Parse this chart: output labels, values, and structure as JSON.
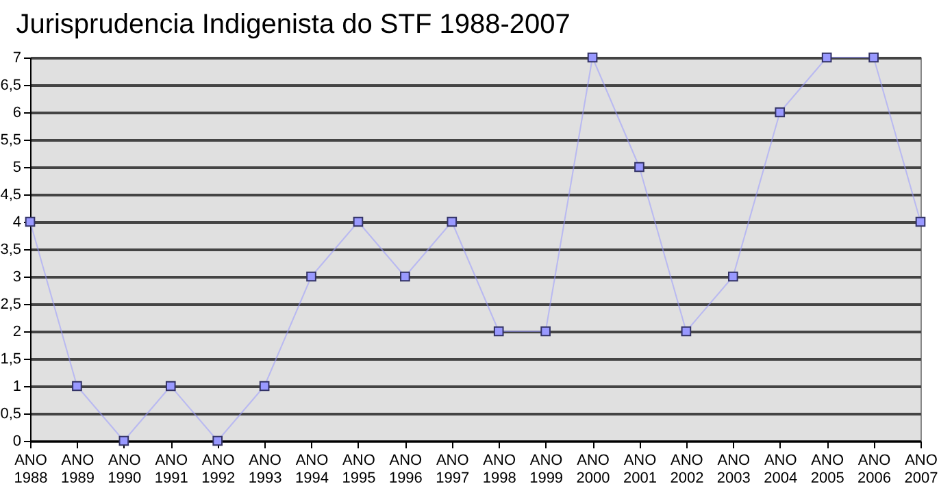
{
  "chart_data": {
    "type": "line",
    "title": "Jurisprudencia Indigenista do STF 1988-2007",
    "categories": [
      "ANO 1988",
      "ANO 1989",
      "ANO 1990",
      "ANO 1991",
      "ANO 1992",
      "ANO 1993",
      "ANO 1994",
      "ANO 1995",
      "ANO 1996",
      "ANO 1997",
      "ANO 1998",
      "ANO 1999",
      "ANO 2000",
      "ANO 2001",
      "ANO 2002",
      "ANO 2003",
      "ANO 2004",
      "ANO 2005",
      "ANO 2006",
      "ANO 2007"
    ],
    "series": [
      {
        "color": "#9999ff",
        "values": [
          4,
          1,
          0,
          1,
          0,
          1,
          3,
          4,
          3,
          4,
          2,
          2,
          7,
          5,
          2,
          3,
          6,
          7,
          7,
          4
        ]
      }
    ],
    "ylim": [
      0,
      7
    ],
    "yticks": [
      0,
      {
        "value": 0.5,
        "label": "0,5"
      },
      1,
      {
        "value": 1.5,
        "label": "1,5"
      },
      2,
      {
        "value": 2.5,
        "label": "2,5"
      },
      3,
      {
        "value": 3.5,
        "label": "3,5"
      },
      4,
      {
        "value": 4.5,
        "label": "4,5"
      },
      5,
      {
        "value": 5.5,
        "label": "5,5"
      },
      6,
      {
        "value": 6.5,
        "label": "6,5"
      },
      7
    ],
    "grid": "y",
    "marker": "square",
    "line_style": "solid"
  }
}
